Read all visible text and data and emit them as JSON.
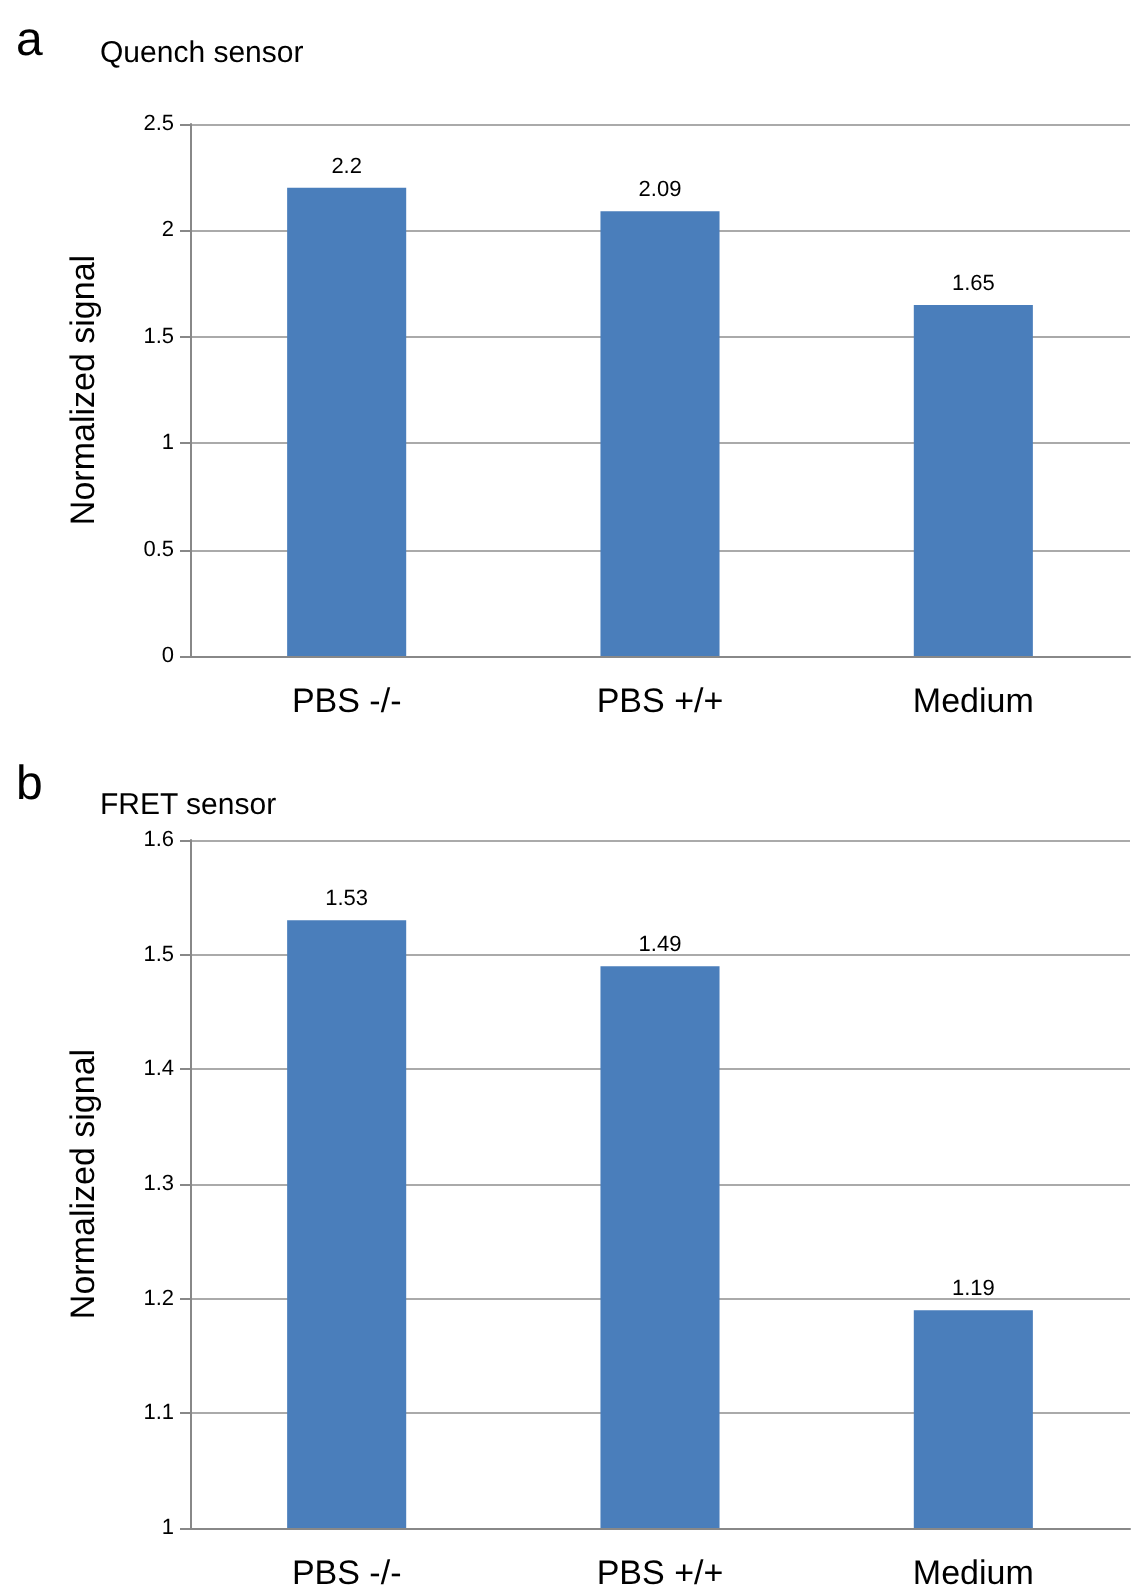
{
  "chart_data": [
    {
      "type": "bar",
      "title": "Quench sensor",
      "annotations": [
        "a"
      ],
      "ylabel": "Normalized signal",
      "categories": [
        "PBS -/-",
        "PBS +/+",
        "Medium"
      ],
      "values": [
        2.2,
        2.09,
        1.65
      ],
      "color": "#4a7ebb",
      "ylim": [
        0,
        2.5
      ],
      "yticks": [
        0,
        0.5,
        1,
        1.5,
        2,
        2.5
      ],
      "grid": "y",
      "data_labels": true
    },
    {
      "type": "bar",
      "title": "FRET sensor",
      "annotations": [
        "b"
      ],
      "ylabel": "Normalized signal",
      "categories": [
        "PBS -/-",
        "PBS +/+",
        "Medium"
      ],
      "values": [
        1.53,
        1.49,
        1.19
      ],
      "color": "#4a7ebb",
      "ylim": [
        1,
        1.6
      ],
      "yticks": [
        1,
        1.1,
        1.2,
        1.3,
        1.4,
        1.5,
        1.6
      ],
      "grid": "y",
      "data_labels": true
    }
  ]
}
